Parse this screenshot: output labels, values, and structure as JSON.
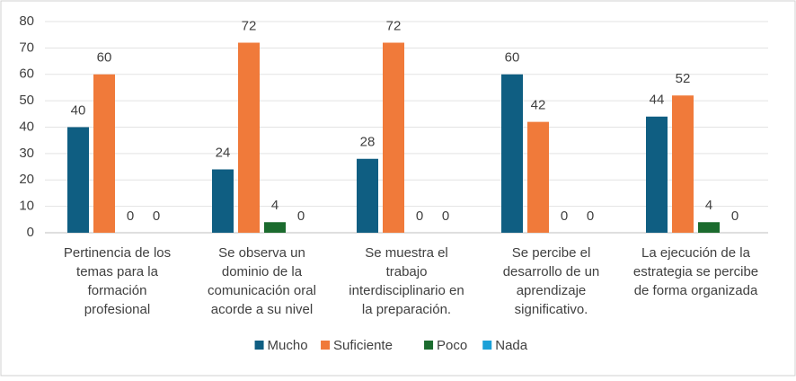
{
  "chart_data": {
    "type": "bar",
    "categories": [
      [
        "Pertinencia de los",
        "temas para la",
        "formación",
        "profesional"
      ],
      [
        "Se observa un",
        "dominio de la",
        "comunicación oral",
        "acorde a su nivel"
      ],
      [
        "Se muestra el",
        "trabajo",
        "interdisciplinario en",
        "la preparación."
      ],
      [
        "Se percibe el",
        "desarrollo de un",
        "aprendizaje",
        "significativo."
      ],
      [
        "La ejecución de la",
        "estrategia se percibe",
        "de forma organizada"
      ]
    ],
    "series": [
      {
        "name": "Mucho",
        "color": "#0f5e82",
        "values": [
          40,
          24,
          28,
          60,
          44
        ]
      },
      {
        "name": "Suficiente",
        "color": "#f07a3a",
        "values": [
          60,
          72,
          72,
          42,
          52
        ]
      },
      {
        "name": "Poco",
        "color": "#1b6b2e",
        "values": [
          0,
          4,
          0,
          0,
          4
        ]
      },
      {
        "name": "Nada",
        "color": "#1aa0d8",
        "values": [
          0,
          0,
          0,
          0,
          0
        ]
      }
    ],
    "ylim": [
      0,
      80
    ],
    "yticks": [
      0,
      10,
      20,
      30,
      40,
      50,
      60,
      70,
      80
    ],
    "grid": true,
    "legend": "bottom"
  }
}
